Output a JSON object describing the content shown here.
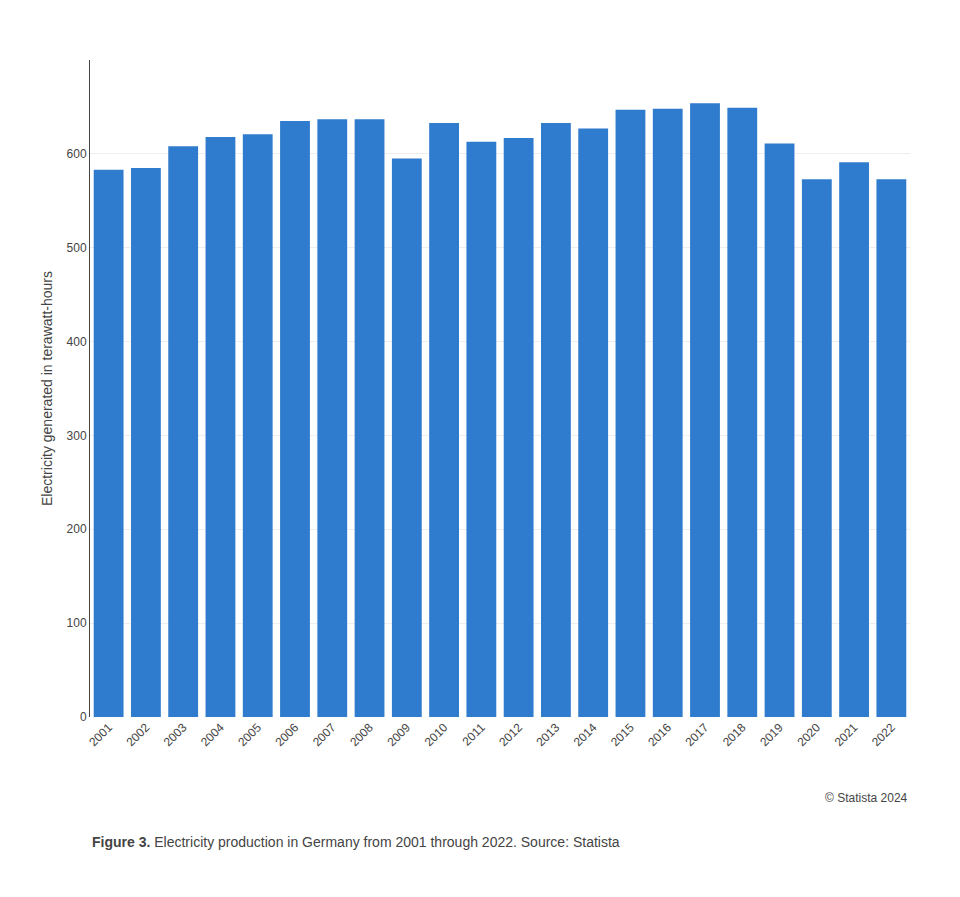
{
  "chart_data": {
    "type": "bar",
    "categories": [
      "2001",
      "2002",
      "2003",
      "2004",
      "2005",
      "2006",
      "2007",
      "2008",
      "2009",
      "2010",
      "2011",
      "2012",
      "2013",
      "2014",
      "2015",
      "2016",
      "2017",
      "2018",
      "2019",
      "2020",
      "2021",
      "2022"
    ],
    "values": [
      583,
      585,
      608,
      618,
      621,
      635,
      637,
      637,
      595,
      633,
      613,
      617,
      633,
      627,
      647,
      648,
      654,
      649,
      611,
      573,
      591,
      573
    ],
    "color": "#2f7bcd",
    "ylabel": "Electricity generated in terawatt-hours",
    "ylim": [
      0,
      700
    ],
    "yticks": [
      0,
      100,
      200,
      300,
      400,
      500,
      600
    ],
    "grid": true,
    "annotations": [
      "© Statista 2024",
      "Figure 3.",
      "Electricity production in Germany from 2001 through 2022. Source: Statista"
    ]
  }
}
